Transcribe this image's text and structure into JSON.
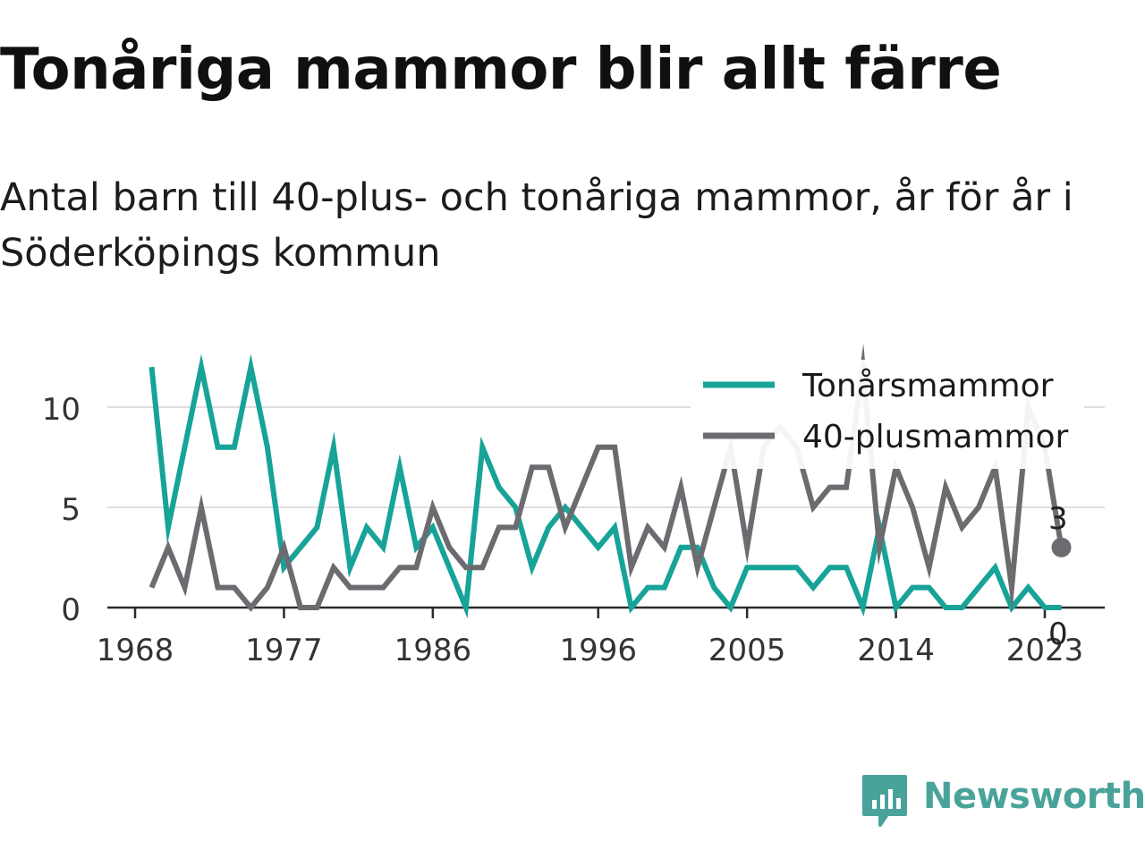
{
  "title": "Tonåriga mammor blir allt färre",
  "subtitle": "Antal barn till 40-plus- och tonåriga mammor, år för år i Söderköpings kommun",
  "brand": {
    "name": "Newsworthy",
    "color": "#4aa39a",
    "icon": "newsworthy-logo-icon"
  },
  "chart_data": {
    "type": "line",
    "x": [
      1969,
      1970,
      1971,
      1972,
      1973,
      1974,
      1975,
      1976,
      1977,
      1978,
      1979,
      1980,
      1981,
      1982,
      1983,
      1984,
      1985,
      1986,
      1987,
      1988,
      1989,
      1990,
      1991,
      1992,
      1993,
      1994,
      1995,
      1996,
      1997,
      1998,
      1999,
      2000,
      2001,
      2002,
      2003,
      2004,
      2005,
      2006,
      2007,
      2008,
      2009,
      2010,
      2011,
      2012,
      2013,
      2014,
      2015,
      2016,
      2017,
      2018,
      2019,
      2020,
      2021,
      2022,
      2023,
      2024
    ],
    "series": [
      {
        "name": "Tonårsmammor",
        "color": "#17a398",
        "values": [
          12,
          4,
          8,
          12,
          8,
          8,
          12,
          8,
          2,
          3,
          4,
          8,
          2,
          4,
          3,
          7,
          3,
          4,
          2,
          0,
          8,
          6,
          5,
          2,
          4,
          5,
          4,
          3,
          4,
          0,
          1,
          1,
          3,
          3,
          1,
          0,
          2,
          2,
          2,
          2,
          1,
          2,
          2,
          0,
          4,
          0,
          1,
          1,
          0,
          0,
          1,
          2,
          0,
          1,
          0,
          0
        ]
      },
      {
        "name": "40-plusmammor",
        "color": "#6c6b70",
        "values": [
          1,
          3,
          1,
          5,
          1,
          1,
          0,
          1,
          3,
          0,
          0,
          2,
          1,
          1,
          1,
          2,
          2,
          5,
          3,
          2,
          2,
          4,
          4,
          7,
          7,
          4,
          6,
          8,
          8,
          2,
          4,
          3,
          6,
          2,
          5,
          8,
          3,
          8,
          9,
          8,
          5,
          6,
          6,
          12,
          3,
          7,
          5,
          2,
          6,
          4,
          5,
          7,
          1,
          10,
          8,
          3
        ]
      }
    ],
    "end_labels": [
      "0",
      "3"
    ],
    "x_ticks": [
      "1968",
      "1977",
      "1986",
      "1996",
      "2005",
      "2014",
      "2023"
    ],
    "x_tick_values": [
      1968,
      1977,
      1986,
      1996,
      2005,
      2014,
      2023
    ],
    "y_ticks": [
      "0",
      "5",
      "10"
    ],
    "y_tick_values": [
      0,
      5,
      10
    ],
    "xlim": [
      1968,
      2028
    ],
    "ylim": [
      0,
      12
    ],
    "grid": "horizontal",
    "legend_position": "top-right",
    "xlabel": "",
    "ylabel": ""
  }
}
